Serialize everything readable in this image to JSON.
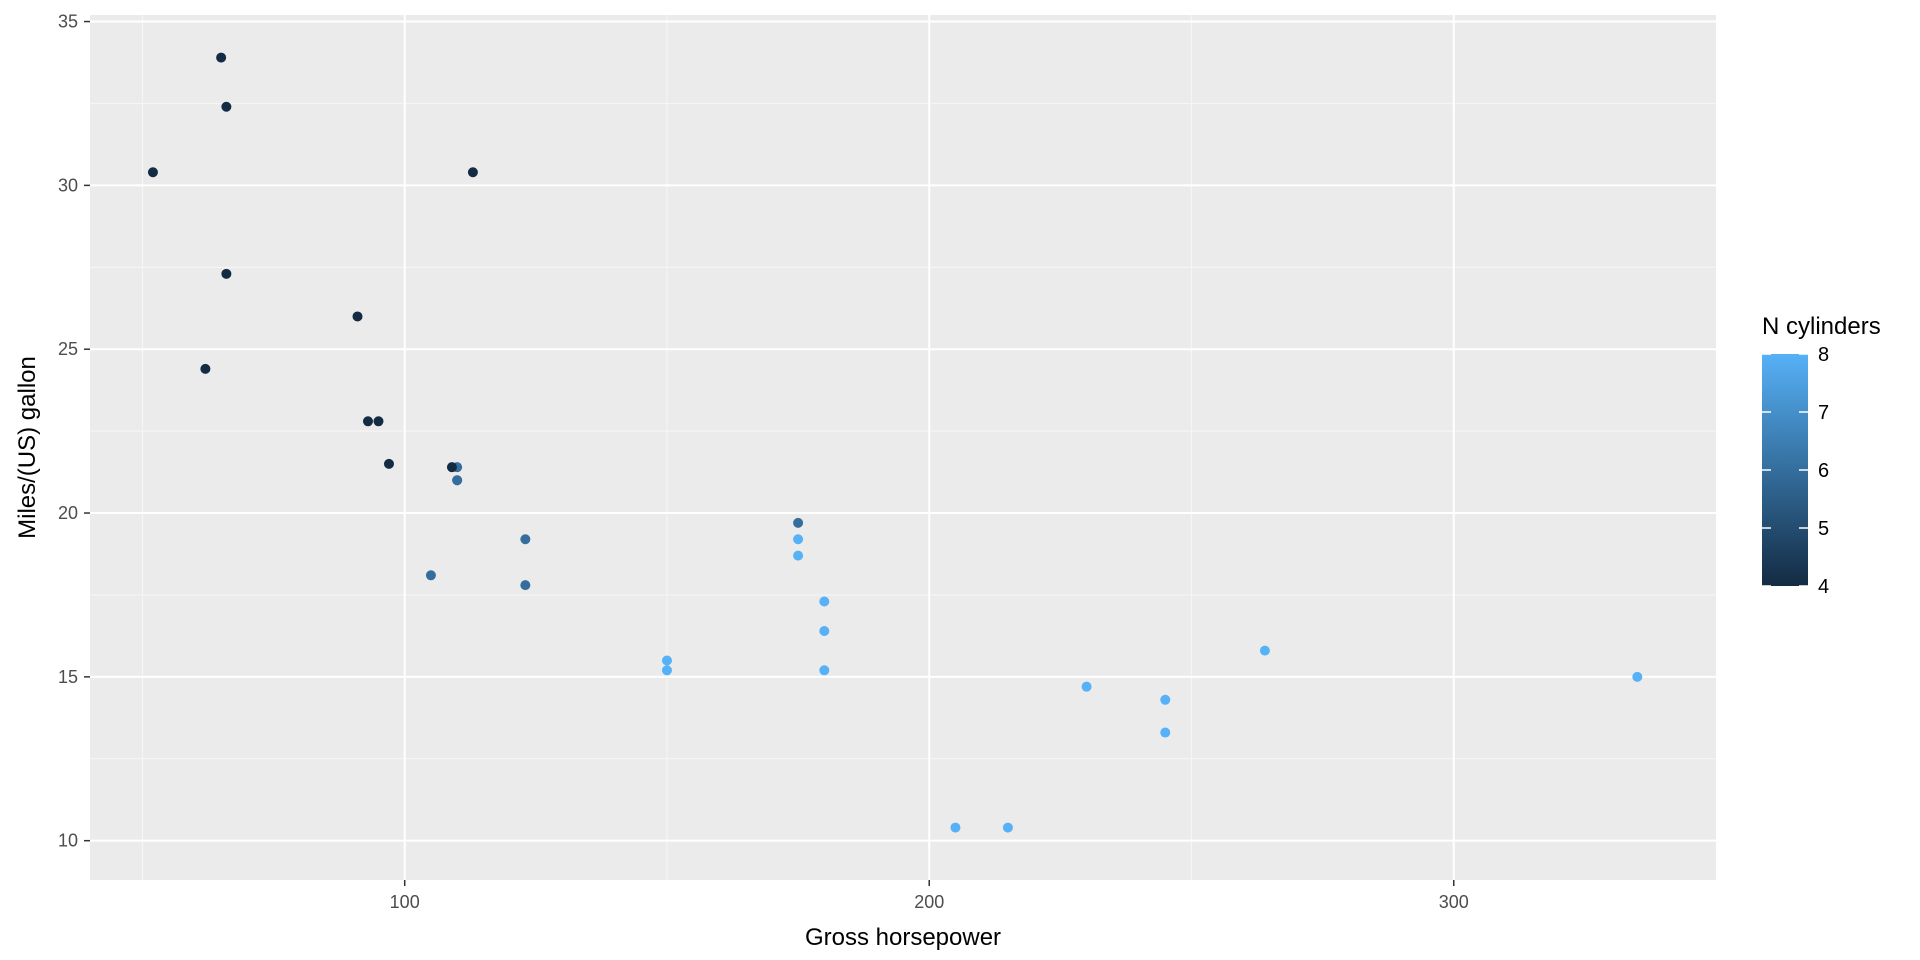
{
  "chart_data": {
    "type": "scatter",
    "title": "",
    "xlabel": "Gross horsepower",
    "ylabel": "Miles/(US) gallon",
    "xlim": [
      40,
      350
    ],
    "ylim": [
      8.8,
      35.2
    ],
    "x_ticks": [
      100,
      200,
      300
    ],
    "y_ticks": [
      10,
      15,
      20,
      25,
      30,
      35
    ],
    "grid": true,
    "legend": {
      "title": "N cylinders",
      "type": "colorbar",
      "position": "right",
      "min": 4,
      "max": 8,
      "ticks": [
        4,
        5,
        6,
        7,
        8
      ],
      "color_low": "#132B43",
      "color_high": "#56B1F7"
    },
    "colors": {
      "panel_background": "#EBEBEB",
      "grid_major": "#FFFFFF",
      "grid_minor": "#F5F5F5"
    },
    "points": [
      {
        "x": 110,
        "y": 21.0,
        "cyl": 6
      },
      {
        "x": 110,
        "y": 21.0,
        "cyl": 6
      },
      {
        "x": 93,
        "y": 22.8,
        "cyl": 4
      },
      {
        "x": 110,
        "y": 21.4,
        "cyl": 6
      },
      {
        "x": 175,
        "y": 18.7,
        "cyl": 8
      },
      {
        "x": 105,
        "y": 18.1,
        "cyl": 6
      },
      {
        "x": 245,
        "y": 14.3,
        "cyl": 8
      },
      {
        "x": 62,
        "y": 24.4,
        "cyl": 4
      },
      {
        "x": 95,
        "y": 22.8,
        "cyl": 4
      },
      {
        "x": 123,
        "y": 19.2,
        "cyl": 6
      },
      {
        "x": 123,
        "y": 17.8,
        "cyl": 6
      },
      {
        "x": 180,
        "y": 16.4,
        "cyl": 8
      },
      {
        "x": 180,
        "y": 17.3,
        "cyl": 8
      },
      {
        "x": 180,
        "y": 15.2,
        "cyl": 8
      },
      {
        "x": 205,
        "y": 10.4,
        "cyl": 8
      },
      {
        "x": 215,
        "y": 10.4,
        "cyl": 8
      },
      {
        "x": 230,
        "y": 14.7,
        "cyl": 8
      },
      {
        "x": 66,
        "y": 32.4,
        "cyl": 4
      },
      {
        "x": 52,
        "y": 30.4,
        "cyl": 4
      },
      {
        "x": 65,
        "y": 33.9,
        "cyl": 4
      },
      {
        "x": 97,
        "y": 21.5,
        "cyl": 4
      },
      {
        "x": 150,
        "y": 15.5,
        "cyl": 8
      },
      {
        "x": 150,
        "y": 15.2,
        "cyl": 8
      },
      {
        "x": 245,
        "y": 13.3,
        "cyl": 8
      },
      {
        "x": 175,
        "y": 19.2,
        "cyl": 8
      },
      {
        "x": 66,
        "y": 27.3,
        "cyl": 4
      },
      {
        "x": 91,
        "y": 26.0,
        "cyl": 4
      },
      {
        "x": 113,
        "y": 30.4,
        "cyl": 4
      },
      {
        "x": 264,
        "y": 15.8,
        "cyl": 8
      },
      {
        "x": 175,
        "y": 19.7,
        "cyl": 6
      },
      {
        "x": 335,
        "y": 15.0,
        "cyl": 8
      },
      {
        "x": 109,
        "y": 21.4,
        "cyl": 4
      }
    ]
  }
}
